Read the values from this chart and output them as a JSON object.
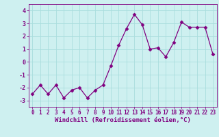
{
  "x": [
    0,
    1,
    2,
    3,
    4,
    5,
    6,
    7,
    8,
    9,
    10,
    11,
    12,
    13,
    14,
    15,
    16,
    17,
    18,
    19,
    20,
    21,
    22,
    23
  ],
  "y": [
    -2.5,
    -1.8,
    -2.5,
    -1.8,
    -2.8,
    -2.2,
    -2.0,
    -2.8,
    -2.2,
    -1.8,
    -0.3,
    1.3,
    2.6,
    3.7,
    2.9,
    1.0,
    1.1,
    0.4,
    1.5,
    3.1,
    2.7,
    2.7,
    2.7,
    0.6
  ],
  "line_color": "#800080",
  "marker": "D",
  "marker_size": 2.5,
  "bg_color": "#cef0f0",
  "grid_color": "#aadddd",
  "xlabel": "Windchill (Refroidissement éolien,°C)",
  "xlabel_fontsize": 6.5,
  "yticks": [
    -3,
    -2,
    -1,
    0,
    1,
    2,
    3,
    4
  ],
  "xtick_labels": [
    "0",
    "1",
    "2",
    "3",
    "4",
    "5",
    "6",
    "7",
    "8",
    "9",
    "10",
    "11",
    "12",
    "13",
    "14",
    "15",
    "16",
    "17",
    "18",
    "19",
    "20",
    "21",
    "22",
    "23"
  ],
  "ylim": [
    -3.5,
    4.5
  ],
  "xlim": [
    -0.5,
    23.5
  ],
  "ytick_fontsize": 6.0,
  "xtick_fontsize": 5.5
}
